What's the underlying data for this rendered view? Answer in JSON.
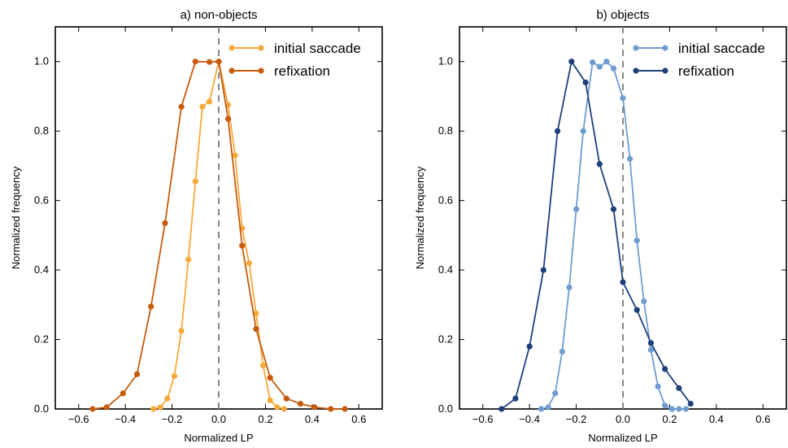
{
  "chart_data": [
    {
      "type": "line",
      "title": "a) non-objects",
      "xlabel": "Normalized LP",
      "ylabel": "Normalized frequency",
      "xlim": [
        -0.7,
        0.7
      ],
      "ylim": [
        0,
        1.1
      ],
      "xticks": [
        -0.6,
        -0.4,
        -0.2,
        0.0,
        0.2,
        0.4,
        0.6
      ],
      "xtick_labels": [
        "−0.6",
        "−0.4",
        "−0.2",
        "0.0",
        "0.2",
        "0.4",
        "0.6"
      ],
      "yticks": [
        0.0,
        0.2,
        0.4,
        0.6,
        0.8,
        1.0
      ],
      "ytick_labels": [
        "0.0",
        "0.2",
        "0.4",
        "0.6",
        "0.8",
        "1.0"
      ],
      "vline_x": 0.0,
      "legend_position": "top-right",
      "series": [
        {
          "name": "initial saccade",
          "color": "#f5a93a",
          "x": [
            -0.28,
            -0.25,
            -0.22,
            -0.19,
            -0.16,
            -0.13,
            -0.1,
            -0.07,
            -0.04,
            0.0,
            0.04,
            0.07,
            0.1,
            0.13,
            0.16,
            0.19,
            0.22,
            0.25,
            0.28
          ],
          "y": [
            0.0,
            0.005,
            0.03,
            0.095,
            0.225,
            0.43,
            0.655,
            0.87,
            0.885,
            1.0,
            0.875,
            0.73,
            0.52,
            0.42,
            0.275,
            0.125,
            0.025,
            0.005,
            0.0
          ]
        },
        {
          "name": "refixation",
          "color": "#c75b0c",
          "x": [
            -0.54,
            -0.48,
            -0.41,
            -0.35,
            -0.29,
            -0.23,
            -0.16,
            -0.1,
            -0.04,
            0.0,
            0.04,
            0.1,
            0.16,
            0.22,
            0.29,
            0.35,
            0.41,
            0.48,
            0.54
          ],
          "y": [
            0.0,
            0.005,
            0.045,
            0.1,
            0.295,
            0.535,
            0.87,
            1.0,
            0.999,
            1.0,
            0.835,
            0.47,
            0.23,
            0.09,
            0.03,
            0.015,
            0.005,
            0.0,
            0.0
          ]
        }
      ]
    },
    {
      "type": "line",
      "title": "b) objects",
      "xlabel": "Normalized LP",
      "ylabel": "Normalized frequency",
      "xlim": [
        -0.7,
        0.7
      ],
      "ylim": [
        0,
        1.1
      ],
      "xticks": [
        -0.6,
        -0.4,
        -0.2,
        0.0,
        0.2,
        0.4,
        0.6
      ],
      "xtick_labels": [
        "−0.6",
        "−0.4",
        "−0.2",
        "0.0",
        "0.2",
        "0.4",
        "0.6"
      ],
      "yticks": [
        0.0,
        0.2,
        0.4,
        0.6,
        0.8,
        1.0
      ],
      "ytick_labels": [
        "0.0",
        "0.2",
        "0.4",
        "0.6",
        "0.8",
        "1.0"
      ],
      "vline_x": 0.0,
      "legend_position": "top-right",
      "series": [
        {
          "name": "initial saccade",
          "color": "#6f9ccf",
          "x": [
            -0.35,
            -0.32,
            -0.29,
            -0.26,
            -0.23,
            -0.2,
            -0.17,
            -0.13,
            -0.1,
            -0.07,
            -0.04,
            0.0,
            0.03,
            0.06,
            0.09,
            0.12,
            0.15,
            0.18,
            0.21,
            0.24,
            0.27
          ],
          "y": [
            0.0,
            0.005,
            0.045,
            0.165,
            0.35,
            0.575,
            0.8,
            0.998,
            0.985,
            1.0,
            0.98,
            0.895,
            0.72,
            0.485,
            0.31,
            0.17,
            0.065,
            0.01,
            0.0,
            0.0,
            0.0
          ]
        },
        {
          "name": "refixation",
          "color": "#1f3f7a",
          "x": [
            -0.52,
            -0.46,
            -0.4,
            -0.34,
            -0.28,
            -0.22,
            -0.16,
            -0.1,
            -0.04,
            0.0,
            0.06,
            0.12,
            0.18,
            0.24,
            0.29
          ],
          "y": [
            0.0,
            0.03,
            0.18,
            0.4,
            0.8,
            1.0,
            0.94,
            0.705,
            0.575,
            0.365,
            0.285,
            0.19,
            0.115,
            0.06,
            0.015
          ]
        }
      ]
    }
  ]
}
